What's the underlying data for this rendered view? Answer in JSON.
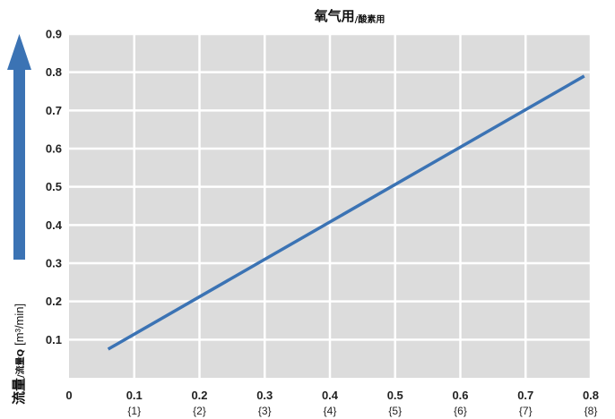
{
  "chart_data": {
    "type": "line",
    "title": "氧气用",
    "title_sub": "/酸素用",
    "ylabel": "流量",
    "ylabel_sub": "/流量Q",
    "ylabel_unit": "[m³/min]",
    "xlim": [
      0,
      0.8
    ],
    "ylim": [
      0,
      0.9
    ],
    "grid": true,
    "x_ticks": [
      "0",
      "0.1",
      "0.2",
      "0.3",
      "0.4",
      "0.5",
      "0.6",
      "0.7",
      "0.8"
    ],
    "x_subticks": [
      "",
      "{1}",
      "{2}",
      "{3}",
      "{4}",
      "{5}",
      "{6}",
      "{7}",
      "{8}"
    ],
    "y_ticks": [
      "0.1",
      "0.2",
      "0.3",
      "0.4",
      "0.5",
      "0.6",
      "0.7",
      "0.8",
      "0.9"
    ],
    "series": [
      {
        "x": [
          0.06,
          0.79
        ],
        "y": [
          0.075,
          0.79
        ],
        "color": "#3b73b4"
      }
    ],
    "colors": {
      "plot_bg": "#dcdcdc",
      "grid": "#ffffff",
      "line": "#3b73b4",
      "arrow": "#3b73b4"
    }
  }
}
